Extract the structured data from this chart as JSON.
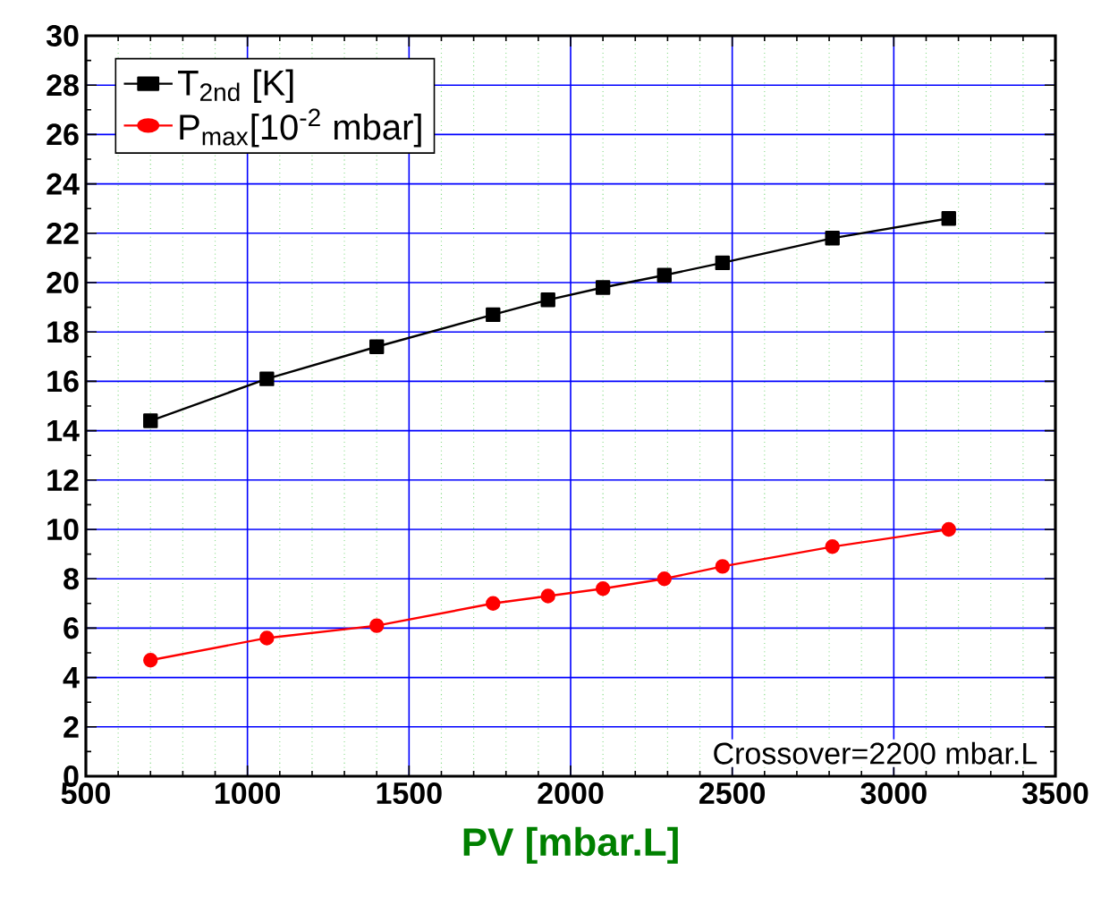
{
  "chart_data": {
    "type": "line",
    "xlabel": "PV [mbar.L]",
    "x": [
      700,
      1060,
      1400,
      1760,
      1930,
      2100,
      2290,
      2470,
      2810,
      3170
    ],
    "series": [
      {
        "name": "T$_{2nd}$ [K]",
        "color": "#000000",
        "marker": "square",
        "values": [
          14.4,
          16.1,
          17.4,
          18.7,
          19.3,
          19.8,
          20.3,
          20.8,
          21.8,
          22.6
        ]
      },
      {
        "name": "P$_{max}$[10$^{-2}$ mbar]",
        "color": "#ff0000",
        "marker": "circle",
        "values": [
          4.7,
          5.6,
          6.1,
          7.0,
          7.3,
          7.6,
          8.0,
          8.5,
          9.3,
          10.0
        ]
      }
    ],
    "xlim": [
      500,
      3500
    ],
    "ylim": [
      0,
      30
    ],
    "xticks": [
      500,
      {
        "value": 600,
        "label": null
      },
      {
        "value": 700,
        "label": null
      },
      {
        "value": 800,
        "label": null
      },
      {
        "value": 900,
        "label": null
      },
      1000,
      {
        "value": 1100,
        "label": null
      },
      {
        "value": 1200,
        "label": null
      },
      {
        "value": 1300,
        "label": null
      },
      {
        "value": 1400,
        "label": null
      },
      1500,
      {
        "value": 1600,
        "label": null
      },
      {
        "value": 1700,
        "label": null
      },
      {
        "value": 1800,
        "label": null
      },
      {
        "value": 1900,
        "label": null
      },
      2000,
      {
        "value": 2100,
        "label": null
      },
      {
        "value": 2200,
        "label": null
      },
      {
        "value": 2300,
        "label": null
      },
      {
        "value": 2400,
        "label": null
      },
      2500,
      {
        "value": 2600,
        "label": null
      },
      {
        "value": 2700,
        "label": null
      },
      {
        "value": 2800,
        "label": null
      },
      {
        "value": 2900,
        "label": null
      },
      3000,
      {
        "value": 3100,
        "label": null
      },
      {
        "value": 3200,
        "label": null
      },
      {
        "value": 3300,
        "label": null
      },
      {
        "value": 3400,
        "label": null
      },
      3500
    ],
    "yticks": [
      0,
      {
        "value": 1,
        "label": null
      },
      2,
      {
        "value": 3,
        "label": null
      },
      4,
      {
        "value": 5,
        "label": null
      },
      6,
      {
        "value": 7,
        "label": null
      },
      8,
      {
        "value": 9,
        "label": null
      },
      10,
      {
        "value": 11,
        "label": null
      },
      12,
      {
        "value": 13,
        "label": null
      },
      14,
      {
        "value": 15,
        "label": null
      },
      16,
      {
        "value": 17,
        "label": null
      },
      18,
      {
        "value": 19,
        "label": null
      },
      20,
      {
        "value": 21,
        "label": null
      },
      22,
      {
        "value": 23,
        "label": null
      },
      24,
      {
        "value": 25,
        "label": null
      },
      26,
      {
        "value": 27,
        "label": null
      },
      28,
      {
        "value": 29,
        "label": null
      },
      30
    ],
    "annotations": [
      "Crossover=2200 mbar.L"
    ],
    "grid": true,
    "legend": "top left",
    "line_style": "solid"
  }
}
